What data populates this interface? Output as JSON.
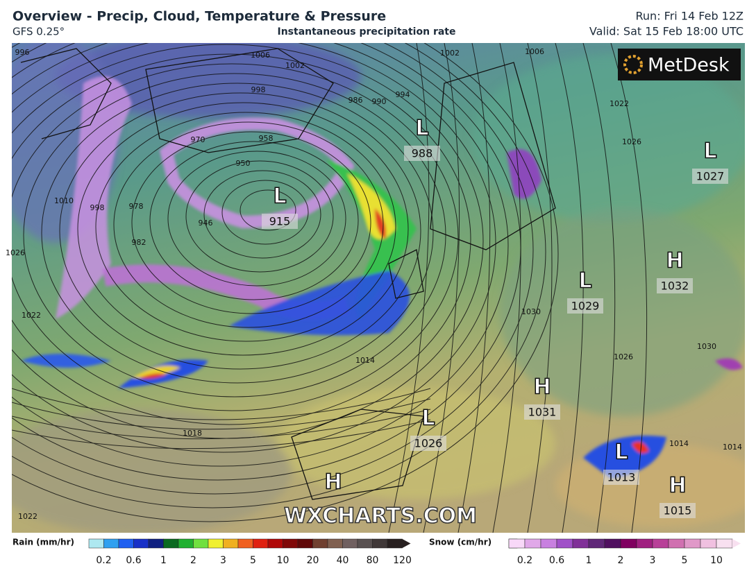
{
  "header": {
    "title": "Overview - Precip, Cloud, Temperature & Pressure",
    "model": "GFS 0.25°",
    "subtitle": "Instantaneous precipitation rate",
    "run": "Run: Fri 14 Feb 12Z",
    "valid": "Valid: Sat 15 Feb 18:00 UTC"
  },
  "logo": "MetDesk",
  "watermark": "WXCHARTS.COM",
  "pressure_centers": [
    {
      "type": "L",
      "value": 988
    },
    {
      "type": "L",
      "value": 915
    },
    {
      "type": "L",
      "value": 1027
    },
    {
      "type": "H",
      "value": 1032
    },
    {
      "type": "L",
      "value": 1029
    },
    {
      "type": "H",
      "value": 1031
    },
    {
      "type": "L",
      "value": 1026
    },
    {
      "type": "L",
      "value": 1013
    },
    {
      "type": "H",
      "value": 1015
    },
    {
      "type": "H"
    }
  ],
  "isobar_labels": [
    996,
    1006,
    1002,
    998,
    1002,
    994,
    990,
    986,
    970,
    958,
    950,
    946,
    978,
    982,
    998,
    1010,
    1026,
    1022,
    1018,
    1022,
    1014,
    1030,
    1026,
    1022,
    1026,
    1006,
    1030,
    1014,
    1014
  ],
  "legend": {
    "rain": {
      "label": "Rain (mm/hr)",
      "ticks": [
        0.2,
        0.6,
        1,
        2,
        3,
        5,
        10,
        20,
        40,
        80,
        120
      ]
    },
    "snow": {
      "label": "Snow (cm/hr)",
      "ticks": [
        0.2,
        0.6,
        1,
        2,
        3,
        5,
        10
      ]
    }
  }
}
